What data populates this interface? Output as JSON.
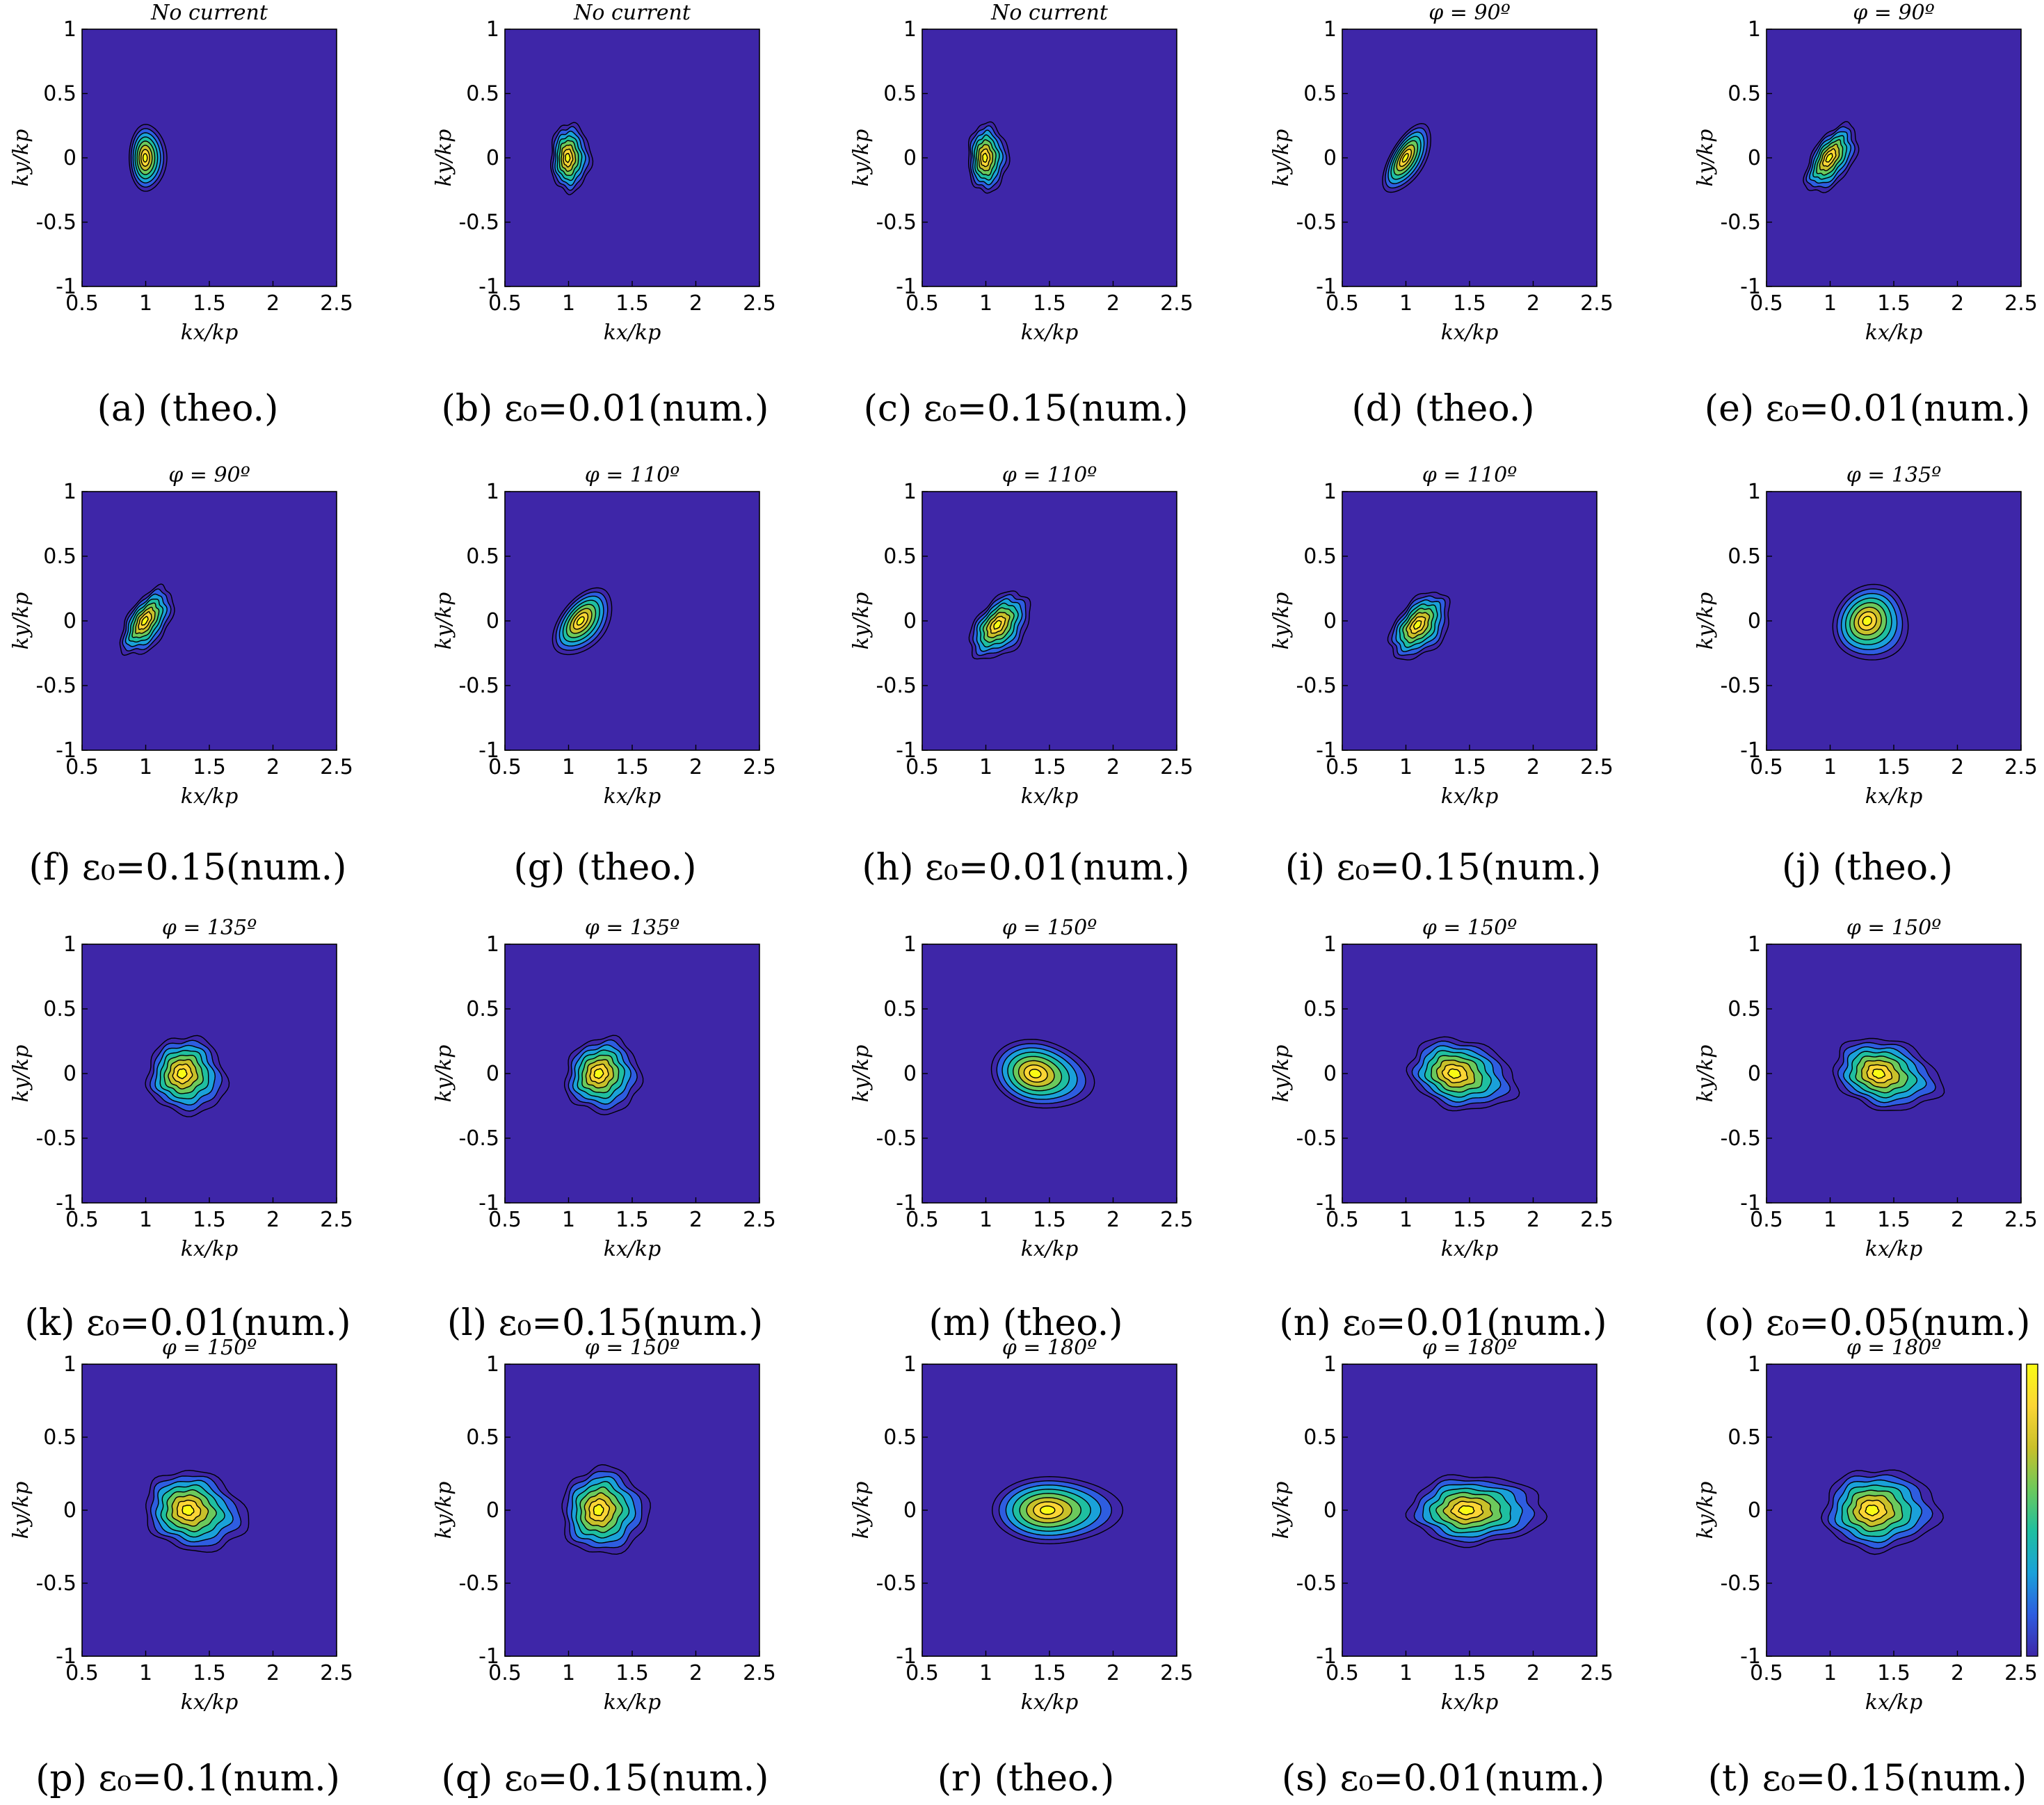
{
  "chart_data": {
    "type": "contour",
    "layout": "4 rows x 5 columns of contour plots",
    "xlim": [
      0.5,
      2.5
    ],
    "ylim": [
      -1,
      1
    ],
    "xticks": [
      "0.5",
      "1",
      "1.5",
      "2",
      "2.5"
    ],
    "yticks": [
      "1",
      "0.5",
      "0",
      "-0.5",
      "-1"
    ],
    "xlabel": "kx/kp",
    "ylabel": "ky/kp",
    "colormap": [
      "#3e26a8",
      "#2e5de0",
      "#1aa1d9",
      "#1fbfa0",
      "#6cc95c",
      "#c9c02a",
      "#fbd535",
      "#f9fb14"
    ],
    "background_color": "#3e26a8",
    "colorbar_panel": 19,
    "panels": [
      {
        "title": "No current",
        "caption_letter": "(a)",
        "caption_rest": "(theo.)",
        "peak": [
          1.0,
          0.0
        ],
        "spread": [
          0.13,
          0.26
        ],
        "tilt_deg": 0,
        "irregular": false
      },
      {
        "title": "No current",
        "caption_letter": "(b)",
        "caption_rest": "ε₀=0.01(num.)",
        "peak": [
          1.0,
          0.0
        ],
        "spread": [
          0.14,
          0.27
        ],
        "tilt_deg": 0,
        "irregular": true
      },
      {
        "title": "No current",
        "caption_letter": "(c)",
        "caption_rest": "ε₀=0.15(num.)",
        "peak": [
          1.0,
          0.0
        ],
        "spread": [
          0.14,
          0.27
        ],
        "tilt_deg": 0,
        "irregular": true
      },
      {
        "title": "φ = 90º",
        "caption_letter": "(d)",
        "caption_rest": "(theo.)",
        "peak": [
          1.0,
          0.0
        ],
        "spread": [
          0.12,
          0.3
        ],
        "tilt_deg": 30,
        "irregular": false
      },
      {
        "title": "φ = 90º",
        "caption_letter": "(e)",
        "caption_rest": "ε₀=0.01(num.)",
        "peak": [
          1.0,
          0.0
        ],
        "spread": [
          0.14,
          0.3
        ],
        "tilt_deg": 32,
        "irregular": true
      },
      {
        "title": "φ = 90º",
        "caption_letter": "(f)",
        "caption_rest": "ε₀=0.15(num.)",
        "peak": [
          1.0,
          0.0
        ],
        "spread": [
          0.14,
          0.3
        ],
        "tilt_deg": 32,
        "irregular": true
      },
      {
        "title": "φ = 110º",
        "caption_letter": "(g)",
        "caption_rest": "(theo.)",
        "peak": [
          1.1,
          0.0
        ],
        "spread": [
          0.16,
          0.3
        ],
        "tilt_deg": 38,
        "irregular": false
      },
      {
        "title": "φ = 110º",
        "caption_letter": "(h)",
        "caption_rest": "ε₀=0.01(num.)",
        "peak": [
          1.1,
          -0.03
        ],
        "spread": [
          0.17,
          0.3
        ],
        "tilt_deg": 38,
        "irregular": true
      },
      {
        "title": "φ = 110º",
        "caption_letter": "(i)",
        "caption_rest": "ε₀=0.15(num.)",
        "peak": [
          1.1,
          -0.03
        ],
        "spread": [
          0.17,
          0.3
        ],
        "tilt_deg": 38,
        "irregular": true
      },
      {
        "title": "φ = 135º",
        "caption_letter": "(j)",
        "caption_rest": "(theo.)",
        "peak": [
          1.3,
          0.0
        ],
        "spread": [
          0.26,
          0.3
        ],
        "tilt_deg": 40,
        "irregular": false
      },
      {
        "title": "φ = 135º",
        "caption_letter": "(k)",
        "caption_rest": "ε₀=0.01(num.)",
        "peak": [
          1.3,
          0.0
        ],
        "spread": [
          0.28,
          0.3
        ],
        "tilt_deg": 38,
        "irregular": true
      },
      {
        "title": "φ = 135º",
        "caption_letter": "(l)",
        "caption_rest": "ε₀=0.15(num.)",
        "peak": [
          1.25,
          0.0
        ],
        "spread": [
          0.26,
          0.3
        ],
        "tilt_deg": 40,
        "irregular": true
      },
      {
        "title": "φ = 150º",
        "caption_letter": "(m)",
        "caption_rest": "(theo.)",
        "peak": [
          1.4,
          0.0
        ],
        "spread": [
          0.36,
          0.26
        ],
        "tilt_deg": 12,
        "irregular": false
      },
      {
        "title": "φ = 150º",
        "caption_letter": "(n)",
        "caption_rest": "ε₀=0.01(num.)",
        "peak": [
          1.4,
          0.0
        ],
        "spread": [
          0.38,
          0.27
        ],
        "tilt_deg": 14,
        "irregular": true
      },
      {
        "title": "φ = 150º",
        "caption_letter": "(o)",
        "caption_rest": "ε₀=0.05(num.)",
        "peak": [
          1.4,
          0.0
        ],
        "spread": [
          0.38,
          0.27
        ],
        "tilt_deg": 14,
        "irregular": true
      },
      {
        "title": "φ = 150º",
        "caption_letter": "(p)",
        "caption_rest": "ε₀=0.1(num.)",
        "peak": [
          1.35,
          0.0
        ],
        "spread": [
          0.36,
          0.27
        ],
        "tilt_deg": 16,
        "irregular": true
      },
      {
        "title": "φ = 150º",
        "caption_letter": "(q)",
        "caption_rest": "ε₀=0.15(num.)",
        "peak": [
          1.25,
          0.0
        ],
        "spread": [
          0.3,
          0.3
        ],
        "tilt_deg": 15,
        "irregular": true
      },
      {
        "title": "φ = 180º",
        "caption_letter": "(r)",
        "caption_rest": "(theo.)",
        "peak": [
          1.5,
          0.0
        ],
        "spread": [
          0.45,
          0.23
        ],
        "tilt_deg": 0,
        "irregular": false
      },
      {
        "title": "φ = 180º",
        "caption_letter": "(s)",
        "caption_rest": "ε₀=0.01(num.)",
        "peak": [
          1.5,
          0.0
        ],
        "spread": [
          0.47,
          0.24
        ],
        "tilt_deg": 0,
        "irregular": true
      },
      {
        "title": "φ = 180º",
        "caption_letter": "(t)",
        "caption_rest": "ε₀=0.15(num.)",
        "peak": [
          1.35,
          0.0
        ],
        "spread": [
          0.4,
          0.28
        ],
        "tilt_deg": 0,
        "irregular": true
      }
    ]
  }
}
